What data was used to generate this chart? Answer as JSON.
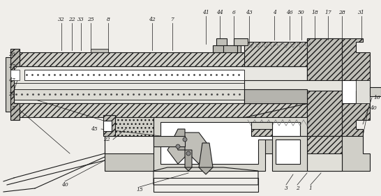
{
  "bg": "#f0eeea",
  "lc": "#1a1a1a",
  "hc": "#555555",
  "lw": 0.8,
  "hlw": 0.5,
  "figw": 5.46,
  "figh": 2.81,
  "dpi": 100
}
